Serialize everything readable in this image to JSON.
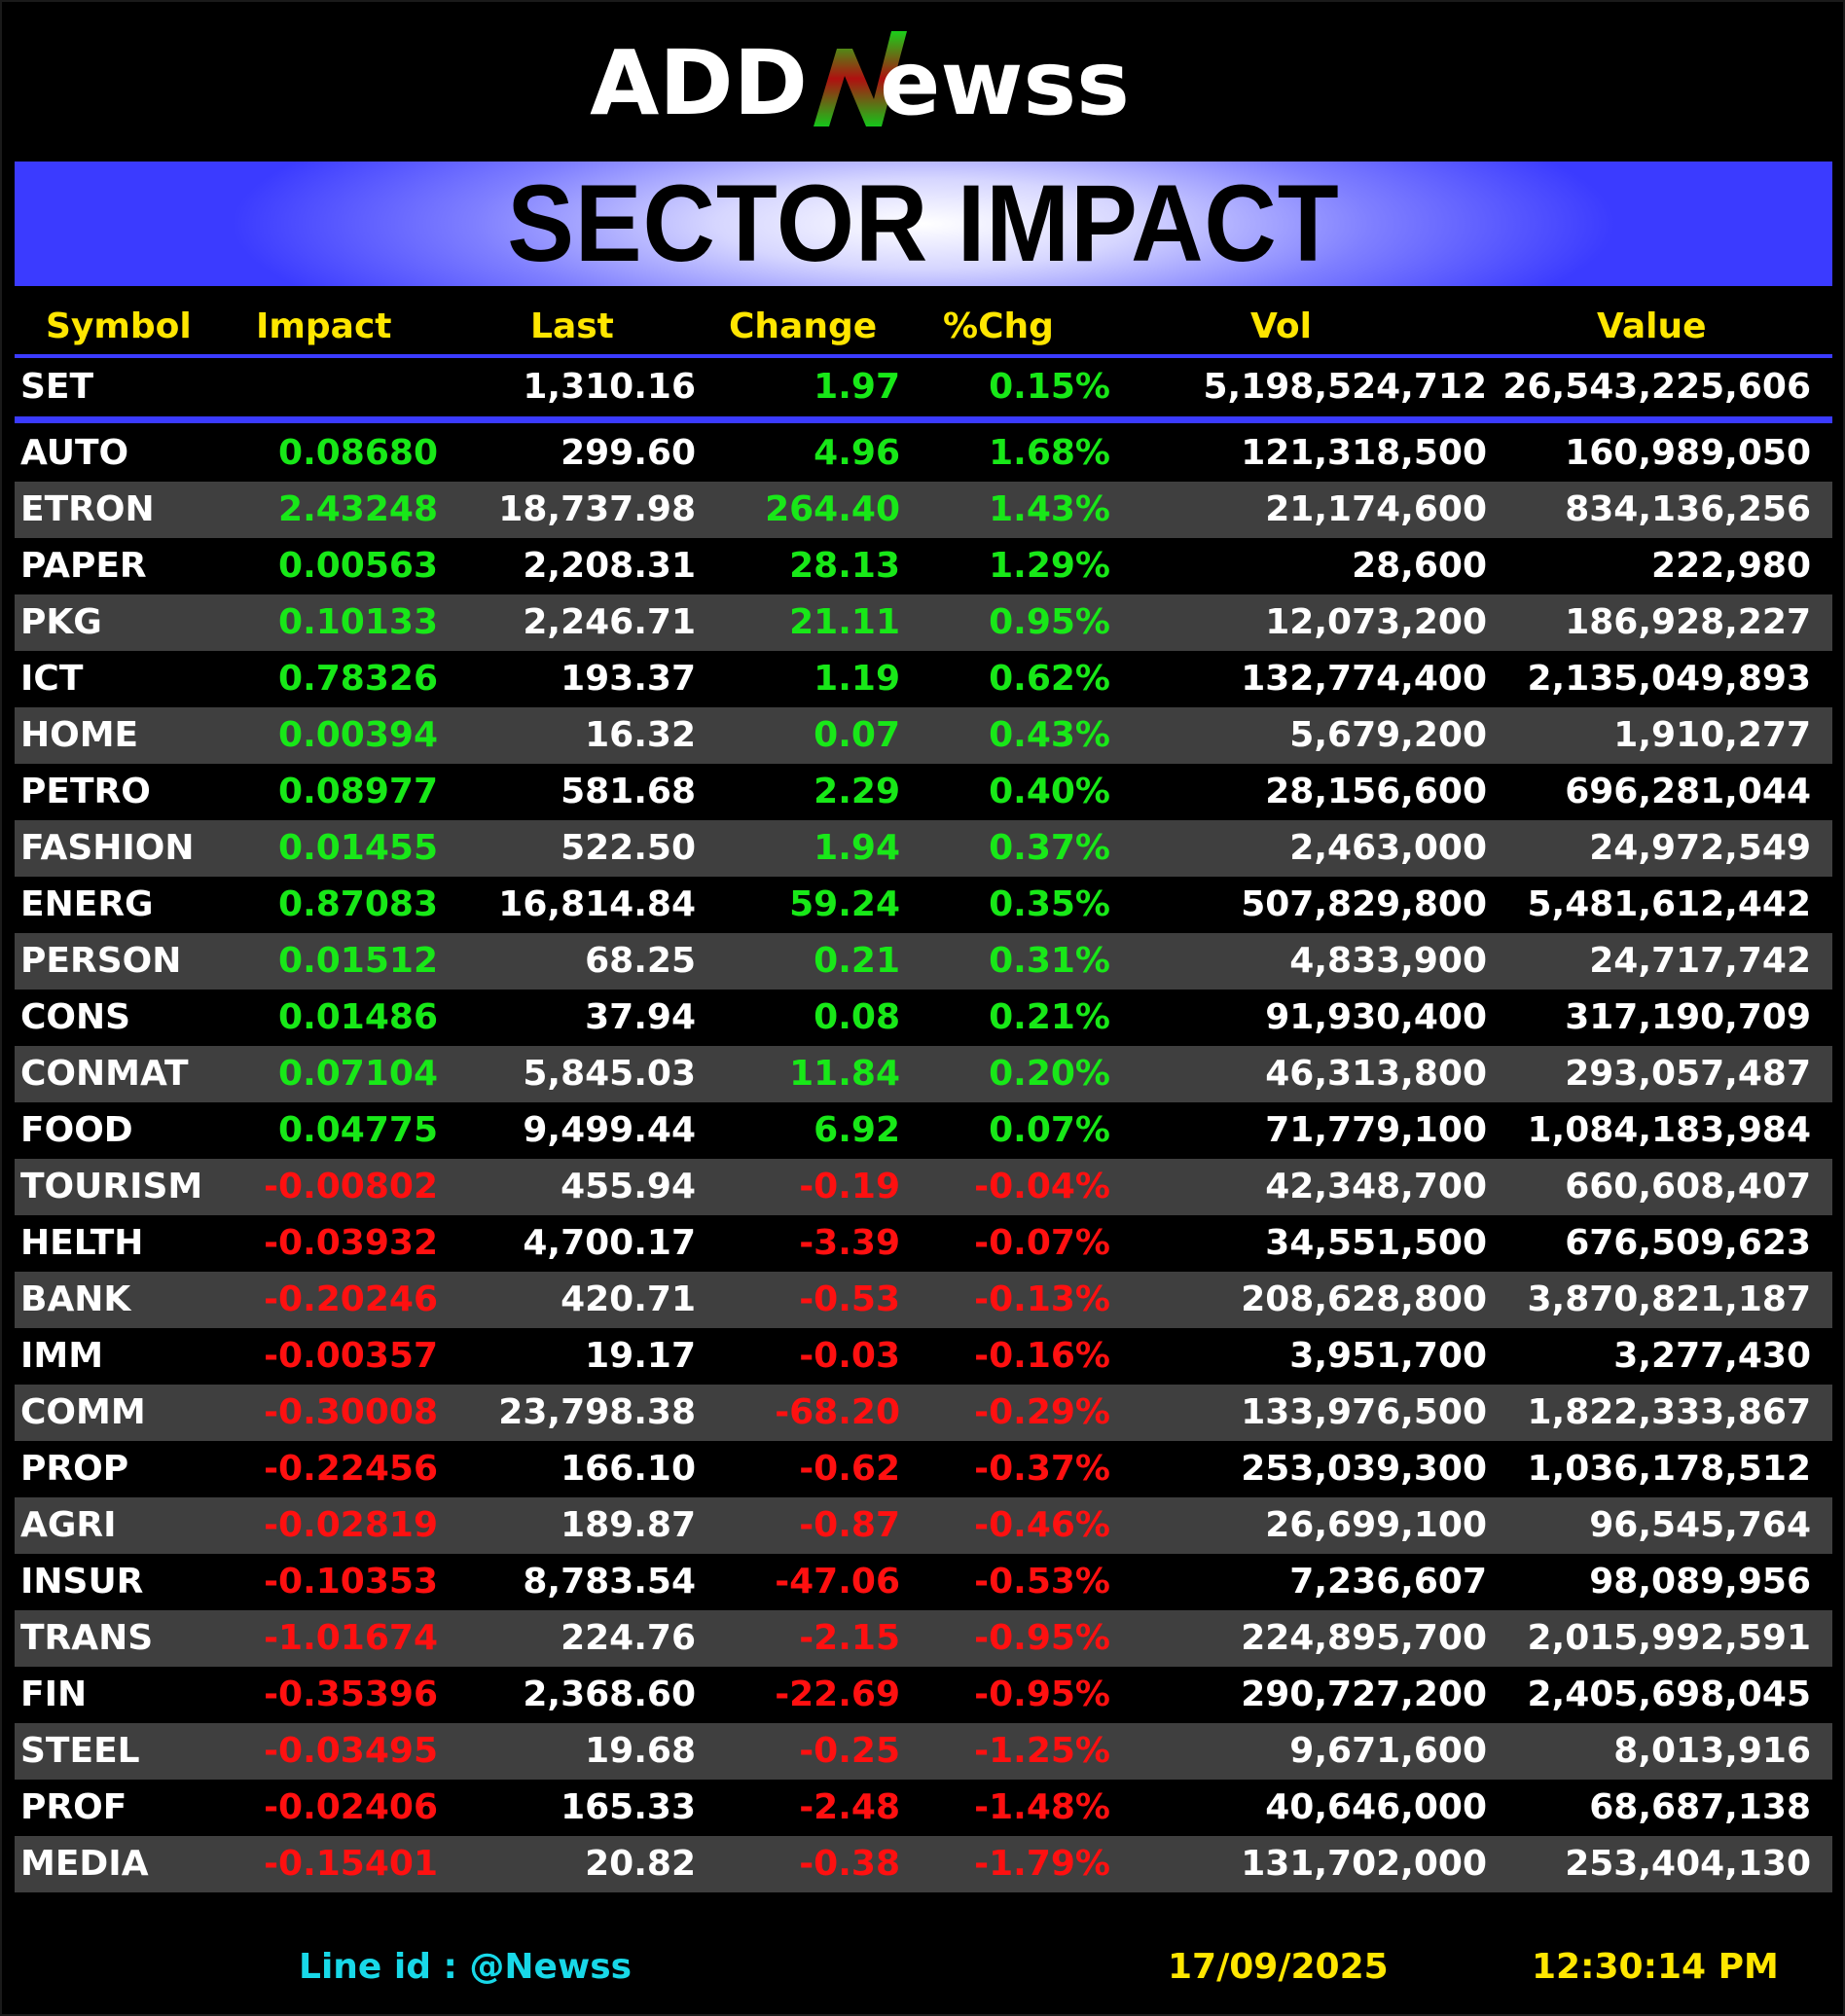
{
  "logo": {
    "text_left": "ADD",
    "text_right": "ewss"
  },
  "banner": {
    "title": "SECTOR IMPACT"
  },
  "columns": {
    "symbol": "Symbol",
    "impact": "Impact",
    "last": "Last",
    "change": "Change",
    "pct": "%Chg",
    "vol": "Vol",
    "value": "Value"
  },
  "set": {
    "symbol": "SET",
    "impact": "",
    "last": "1,310.16",
    "change": "1.97",
    "pct": "0.15%",
    "vol": "5,198,524,712",
    "value": "26,543,225,606",
    "direction": "pos"
  },
  "rows": [
    {
      "symbol": "AUTO",
      "impact": "0.08680",
      "last": "299.60",
      "change": "4.96",
      "pct": "1.68%",
      "vol": "121,318,500",
      "value": "160,989,050",
      "direction": "pos"
    },
    {
      "symbol": "ETRON",
      "impact": "2.43248",
      "last": "18,737.98",
      "change": "264.40",
      "pct": "1.43%",
      "vol": "21,174,600",
      "value": "834,136,256",
      "direction": "pos"
    },
    {
      "symbol": "PAPER",
      "impact": "0.00563",
      "last": "2,208.31",
      "change": "28.13",
      "pct": "1.29%",
      "vol": "28,600",
      "value": "222,980",
      "direction": "pos"
    },
    {
      "symbol": "PKG",
      "impact": "0.10133",
      "last": "2,246.71",
      "change": "21.11",
      "pct": "0.95%",
      "vol": "12,073,200",
      "value": "186,928,227",
      "direction": "pos"
    },
    {
      "symbol": "ICT",
      "impact": "0.78326",
      "last": "193.37",
      "change": "1.19",
      "pct": "0.62%",
      "vol": "132,774,400",
      "value": "2,135,049,893",
      "direction": "pos"
    },
    {
      "symbol": "HOME",
      "impact": "0.00394",
      "last": "16.32",
      "change": "0.07",
      "pct": "0.43%",
      "vol": "5,679,200",
      "value": "1,910,277",
      "direction": "pos"
    },
    {
      "symbol": "PETRO",
      "impact": "0.08977",
      "last": "581.68",
      "change": "2.29",
      "pct": "0.40%",
      "vol": "28,156,600",
      "value": "696,281,044",
      "direction": "pos"
    },
    {
      "symbol": "FASHION",
      "impact": "0.01455",
      "last": "522.50",
      "change": "1.94",
      "pct": "0.37%",
      "vol": "2,463,000",
      "value": "24,972,549",
      "direction": "pos"
    },
    {
      "symbol": "ENERG",
      "impact": "0.87083",
      "last": "16,814.84",
      "change": "59.24",
      "pct": "0.35%",
      "vol": "507,829,800",
      "value": "5,481,612,442",
      "direction": "pos"
    },
    {
      "symbol": "PERSON",
      "impact": "0.01512",
      "last": "68.25",
      "change": "0.21",
      "pct": "0.31%",
      "vol": "4,833,900",
      "value": "24,717,742",
      "direction": "pos"
    },
    {
      "symbol": "CONS",
      "impact": "0.01486",
      "last": "37.94",
      "change": "0.08",
      "pct": "0.21%",
      "vol": "91,930,400",
      "value": "317,190,709",
      "direction": "pos"
    },
    {
      "symbol": "CONMAT",
      "impact": "0.07104",
      "last": "5,845.03",
      "change": "11.84",
      "pct": "0.20%",
      "vol": "46,313,800",
      "value": "293,057,487",
      "direction": "pos"
    },
    {
      "symbol": "FOOD",
      "impact": "0.04775",
      "last": "9,499.44",
      "change": "6.92",
      "pct": "0.07%",
      "vol": "71,779,100",
      "value": "1,084,183,984",
      "direction": "pos"
    },
    {
      "symbol": "TOURISM",
      "impact": "-0.00802",
      "last": "455.94",
      "change": "-0.19",
      "pct": "-0.04%",
      "vol": "42,348,700",
      "value": "660,608,407",
      "direction": "neg"
    },
    {
      "symbol": "HELTH",
      "impact": "-0.03932",
      "last": "4,700.17",
      "change": "-3.39",
      "pct": "-0.07%",
      "vol": "34,551,500",
      "value": "676,509,623",
      "direction": "neg"
    },
    {
      "symbol": "BANK",
      "impact": "-0.20246",
      "last": "420.71",
      "change": "-0.53",
      "pct": "-0.13%",
      "vol": "208,628,800",
      "value": "3,870,821,187",
      "direction": "neg"
    },
    {
      "symbol": "IMM",
      "impact": "-0.00357",
      "last": "19.17",
      "change": "-0.03",
      "pct": "-0.16%",
      "vol": "3,951,700",
      "value": "3,277,430",
      "direction": "neg"
    },
    {
      "symbol": "COMM",
      "impact": "-0.30008",
      "last": "23,798.38",
      "change": "-68.20",
      "pct": "-0.29%",
      "vol": "133,976,500",
      "value": "1,822,333,867",
      "direction": "neg"
    },
    {
      "symbol": "PROP",
      "impact": "-0.22456",
      "last": "166.10",
      "change": "-0.62",
      "pct": "-0.37%",
      "vol": "253,039,300",
      "value": "1,036,178,512",
      "direction": "neg"
    },
    {
      "symbol": "AGRI",
      "impact": "-0.02819",
      "last": "189.87",
      "change": "-0.87",
      "pct": "-0.46%",
      "vol": "26,699,100",
      "value": "96,545,764",
      "direction": "neg"
    },
    {
      "symbol": "INSUR",
      "impact": "-0.10353",
      "last": "8,783.54",
      "change": "-47.06",
      "pct": "-0.53%",
      "vol": "7,236,607",
      "value": "98,089,956",
      "direction": "neg"
    },
    {
      "symbol": "TRANS",
      "impact": "-1.01674",
      "last": "224.76",
      "change": "-2.15",
      "pct": "-0.95%",
      "vol": "224,895,700",
      "value": "2,015,992,591",
      "direction": "neg"
    },
    {
      "symbol": "FIN",
      "impact": "-0.35396",
      "last": "2,368.60",
      "change": "-22.69",
      "pct": "-0.95%",
      "vol": "290,727,200",
      "value": "2,405,698,045",
      "direction": "neg"
    },
    {
      "symbol": "STEEL",
      "impact": "-0.03495",
      "last": "19.68",
      "change": "-0.25",
      "pct": "-1.25%",
      "vol": "9,671,600",
      "value": "8,013,916",
      "direction": "neg"
    },
    {
      "symbol": "PROF",
      "impact": "-0.02406",
      "last": "165.33",
      "change": "-2.48",
      "pct": "-1.48%",
      "vol": "40,646,000",
      "value": "68,687,138",
      "direction": "neg"
    },
    {
      "symbol": "MEDIA",
      "impact": "-0.15401",
      "last": "20.82",
      "change": "-0.38",
      "pct": "-1.79%",
      "vol": "131,702,000",
      "value": "253,404,130",
      "direction": "neg"
    }
  ],
  "footer": {
    "line_id": "Line id  : @Newss",
    "date": "17/09/2025",
    "time": "12:30:14 PM"
  },
  "colors": {
    "positive": "#18e818",
    "negative": "#ff1010",
    "header": "#ffe600",
    "accent": "#3b3bff",
    "footer_line": "#18d8e8"
  }
}
